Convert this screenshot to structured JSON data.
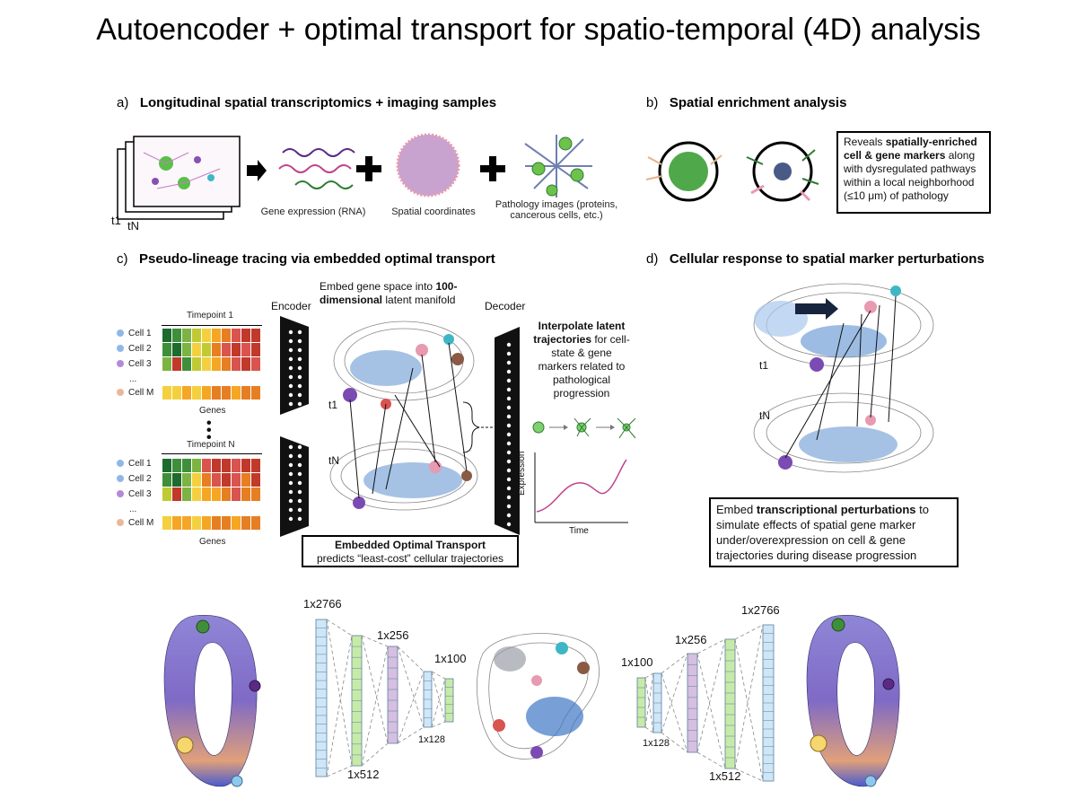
{
  "title": "Autoencoder + optimal transport for spatio-temporal (4D) analysis",
  "panel_a": {
    "prefix": "a)",
    "heading": "Longitudinal spatial transcriptomics + imaging samples",
    "t1": "t1",
    "tN": "tN",
    "gene_expression": "Gene expression (RNA)",
    "spatial_coordinates": "Spatial coordinates",
    "pathology_images": "Pathology images (proteins, cancerous cells, etc.)"
  },
  "panel_b": {
    "prefix": "b)",
    "heading": "Spatial enrichment analysis",
    "box_pre": "Reveals",
    "box_bold": "spatially-enriched cell & gene markers",
    "box_post": "along with dysregulated pathways within a local neighborhood (≤10 μm) of pathology"
  },
  "panel_c": {
    "prefix": "c)",
    "heading": "Pseudo-lineage tracing via embedded optimal transport",
    "timepoint_1": "Timepoint 1",
    "timepoint_n": "Timepoint N",
    "cells": [
      "Cell 1",
      "Cell 2",
      "Cell 3",
      "...",
      "Cell M"
    ],
    "genes": "Genes",
    "encoder": "Encoder",
    "decoder": "Decoder",
    "embed_pre": "Embed gene space into",
    "embed_bold": "100-dimensional",
    "embed_post": "latent manifold",
    "t1": "t1",
    "tN": "tN",
    "interp_bold": "Interpolate latent trajectories",
    "interp_post": "for cell-state & gene markers related to pathological progression",
    "expression": "Expression",
    "time": "Time",
    "eot_bold": "Embedded Optimal Transport",
    "eot_post": "predicts “least-cost” cellular trajectories"
  },
  "panel_d": {
    "prefix": "d)",
    "heading": "Cellular response to spatial marker perturbations",
    "t1": "t1",
    "tN": "tN",
    "box_pre": "Embed",
    "box_bold": "transcriptional perturbations",
    "box_post": "to simulate effects of spatial gene marker under/overexpression on cell & gene trajectories during disease progression"
  },
  "network": {
    "enc_2766": "1x2766",
    "enc_512": "1x512",
    "enc_256": "1x256",
    "enc_128": "1x128",
    "enc_100": "1x100",
    "dec_100": "1x100",
    "dec_128": "1x128",
    "dec_256": "1x256",
    "dec_512": "1x512",
    "dec_2766": "1x2766"
  },
  "colors": {
    "heat": [
      "#1e6b2e",
      "#3f8f3a",
      "#7cb342",
      "#c0ca33",
      "#f4d03f",
      "#f5a623",
      "#e67e22",
      "#d9534f",
      "#c0392b"
    ],
    "cell_dots": [
      "#8fb8e8",
      "#8fb8e8",
      "#b48ad6",
      "#e8b89a"
    ],
    "layer_blue": "#cfe6f7",
    "layer_green": "#c8eaa8",
    "layer_purple": "#d6bfe0"
  }
}
